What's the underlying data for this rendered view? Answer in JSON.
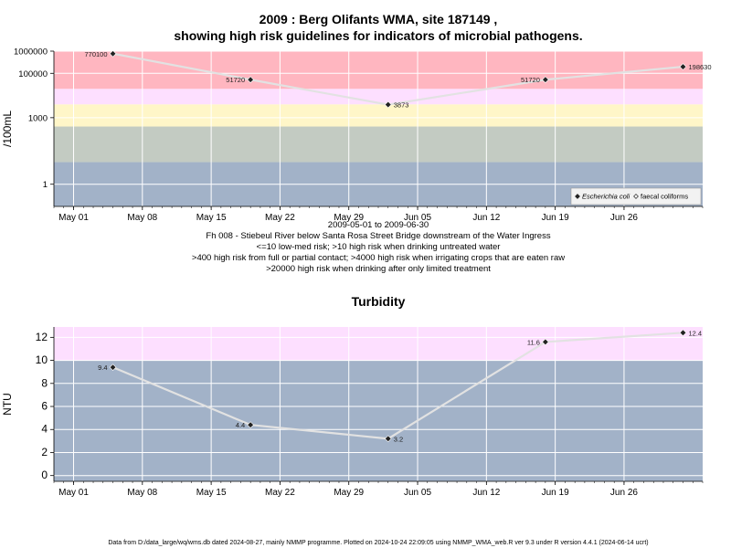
{
  "chart_data": [
    {
      "type": "line",
      "title_lines": [
        "2009 : Berg Olifants WMA, site 187149 ,",
        "showing high risk guidelines for indicators of microbial pathogens."
      ],
      "ylabel": "/100mL",
      "yscale": "log",
      "yticks": [
        "1000000",
        "100000",
        "1000",
        "1"
      ],
      "ytick_values": [
        1000000,
        100000,
        1000,
        1
      ],
      "ylim": [
        0.1,
        1000000
      ],
      "x_tick_labels": [
        "May 01",
        "May 08",
        "May 15",
        "May 22",
        "May 29",
        "Jun 05",
        "Jun 12",
        "Jun 19",
        "Jun 26"
      ],
      "x_tick_dates": [
        "2009-05-01",
        "2009-05-08",
        "2009-05-15",
        "2009-05-22",
        "2009-05-29",
        "2009-06-05",
        "2009-06-12",
        "2009-06-19",
        "2009-06-26"
      ],
      "xlim": [
        "2009-04-29",
        "2009-07-04"
      ],
      "bands": [
        {
          "from": 0.1,
          "to": 10,
          "color": "#a2b2c8"
        },
        {
          "from": 10,
          "to": 400,
          "color": "#c3cbc2"
        },
        {
          "from": 400,
          "to": 4000,
          "color": "#fff6c8"
        },
        {
          "from": 4000,
          "to": 20000,
          "color": "#fddfff"
        },
        {
          "from": 20000,
          "to": 1000000,
          "color": "#ffb6c0"
        }
      ],
      "series": [
        {
          "name": "Escherichia coli",
          "x": [
            "2009-05-05",
            "2009-05-19",
            "2009-06-02",
            "2009-06-18",
            "2009-07-02"
          ],
          "y": [
            770100,
            51720,
            3873,
            51720,
            198630
          ],
          "labels": [
            "770100",
            "51720",
            "3873",
            "51720",
            "198630"
          ]
        }
      ],
      "legend": [
        {
          "label": "Escherichia coli",
          "marker": "diamond-filled"
        },
        {
          "label": "faecal coliforms",
          "marker": "diamond-open"
        }
      ],
      "legend_position": "bottom-right",
      "xlabel_lines": [
        "2009-05-01 to 2009-06-30",
        "Fh 008 - Stiebeul River below Santa Rosa Street Bridge downstream of the Water Ingress",
        "<=10 low-med risk; >10 high risk when drinking untreated water",
        ">400 high risk from full or partial contact; >4000 high risk when irrigating crops that are eaten raw",
        ">20000 high risk when drinking after only limited treatment"
      ]
    },
    {
      "type": "line",
      "title": "Turbidity",
      "ylabel": "NTU",
      "yticks": [
        "0",
        "2",
        "4",
        "6",
        "8",
        "10",
        "12"
      ],
      "ytick_values": [
        0,
        2,
        4,
        6,
        8,
        10,
        12
      ],
      "ylim": [
        -0.5,
        12.9
      ],
      "x_tick_labels": [
        "May 01",
        "May 08",
        "May 15",
        "May 22",
        "May 29",
        "Jun 05",
        "Jun 12",
        "Jun 19",
        "Jun 26"
      ],
      "x_tick_dates": [
        "2009-05-01",
        "2009-05-08",
        "2009-05-15",
        "2009-05-22",
        "2009-05-29",
        "2009-06-05",
        "2009-06-12",
        "2009-06-19",
        "2009-06-26"
      ],
      "xlim": [
        "2009-04-29",
        "2009-07-04"
      ],
      "bands": [
        {
          "from": -0.5,
          "to": 10,
          "color": "#a2b2c8"
        },
        {
          "from": 10,
          "to": 12.9,
          "color": "#fddfff"
        }
      ],
      "series": [
        {
          "name": "",
          "x": [
            "2009-05-05",
            "2009-05-19",
            "2009-06-02",
            "2009-06-18",
            "2009-07-02"
          ],
          "y": [
            9.4,
            4.4,
            3.2,
            11.6,
            12.4
          ],
          "labels": [
            "9.4",
            "4.4",
            "3.2",
            "11.6",
            "12.4"
          ]
        }
      ]
    }
  ],
  "footer": "Data from D:/data_large/wq/wms.db dated 2024-08-27, mainly NMMP programme. Plotted on 2024-10-24 22:09:05 using NMMP_WMA_web.R ver 9.3 under R version 4.4.1 (2024-06-14 ucrt)",
  "colors": {
    "line": "#e2e2e2",
    "marker": "#222222",
    "grid": "#ffffff"
  }
}
